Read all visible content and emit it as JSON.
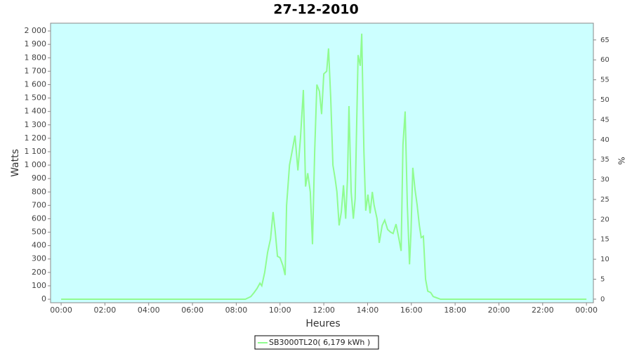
{
  "chart_data": {
    "type": "line",
    "title": "27-12-2010",
    "x_label": "Heures",
    "y_label": "Watts",
    "y2_label": "%",
    "xlim": [
      -29,
      1459
    ],
    "xticks": [
      {
        "value": 0,
        "label": "00:00"
      },
      {
        "value": 120,
        "label": "02:00"
      },
      {
        "value": 240,
        "label": "04:00"
      },
      {
        "value": 360,
        "label": "06:00"
      },
      {
        "value": 480,
        "label": "08:00"
      },
      {
        "value": 600,
        "label": "10:00"
      },
      {
        "value": 720,
        "label": "12:00"
      },
      {
        "value": 840,
        "label": "14:00"
      },
      {
        "value": 960,
        "label": "16:00"
      },
      {
        "value": 1080,
        "label": "18:00"
      },
      {
        "value": 1200,
        "label": "20:00"
      },
      {
        "value": 1320,
        "label": "22:00"
      },
      {
        "value": 1440,
        "label": "00:00"
      }
    ],
    "ylim": [
      -26,
      2058
    ],
    "yticks": [
      0,
      100,
      200,
      300,
      400,
      500,
      600,
      700,
      800,
      900,
      {
        "value": 1000,
        "label": "1 000"
      },
      {
        "value": 1100,
        "label": "1 100"
      },
      {
        "value": 1200,
        "label": "1 200"
      },
      {
        "value": 1300,
        "label": "1 300"
      },
      {
        "value": 1400,
        "label": "1 400"
      },
      {
        "value": 1500,
        "label": "1 500"
      },
      {
        "value": 1600,
        "label": "1 600"
      },
      {
        "value": 1700,
        "label": "1 700"
      },
      {
        "value": 1800,
        "label": "1 800"
      },
      {
        "value": 1900,
        "label": "1 900"
      },
      {
        "value": 2000,
        "label": "2 000"
      }
    ],
    "y2lim": [
      -0.9,
      69.2
    ],
    "y2ticks": [
      0,
      5,
      10,
      15,
      20,
      25,
      30,
      35,
      40,
      45,
      50,
      55,
      60,
      65
    ],
    "background": "#ccffff",
    "series": [
      {
        "name": "SB3000TL20( 6,179 kWh )",
        "color": "#90fc90",
        "x": [
          0,
          505,
          520,
          529,
          537,
          545,
          550,
          558,
          566,
          574,
          581,
          587,
          593,
          600,
          608,
          614,
          618,
          626,
          633,
          641,
          649,
          656,
          664,
          670,
          676,
          683,
          689,
          695,
          701,
          708,
          714,
          720,
          728,
          733,
          739,
          745,
          751,
          756,
          762,
          768,
          774,
          780,
          785,
          789,
          795,
          801,
          806,
          814,
          820,
          824,
          830,
          835,
          841,
          847,
          853,
          858,
          866,
          872,
          880,
          887,
          895,
          903,
          910,
          918,
          926,
          932,
          937,
          943,
          949,
          955,
          959,
          964,
          970,
          976,
          982,
          987,
          993,
          999,
          1005,
          1013,
          1020,
          1030,
          1040,
          1440
        ],
        "values": [
          0,
          0,
          20,
          50,
          80,
          120,
          100,
          200,
          350,
          450,
          650,
          500,
          320,
          310,
          250,
          180,
          700,
          1000,
          1100,
          1220,
          960,
          1200,
          1560,
          840,
          940,
          800,
          410,
          1100,
          1600,
          1550,
          1380,
          1680,
          1700,
          1870,
          1500,
          1000,
          900,
          800,
          550,
          650,
          850,
          600,
          900,
          1440,
          800,
          600,
          750,
          1820,
          1740,
          1980,
          1100,
          660,
          780,
          640,
          800,
          700,
          600,
          420,
          550,
          590,
          520,
          500,
          490,
          560,
          450,
          360,
          1150,
          1400,
          700,
          260,
          500,
          980,
          820,
          700,
          550,
          460,
          470,
          150,
          60,
          50,
          20,
          10,
          0,
          0
        ]
      }
    ]
  }
}
